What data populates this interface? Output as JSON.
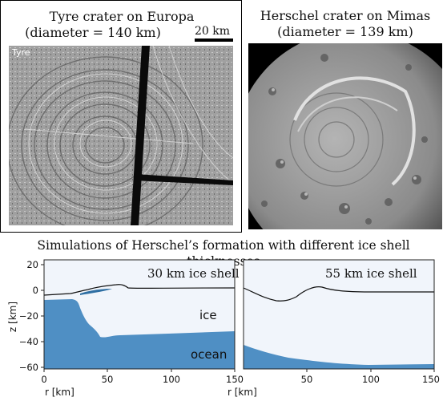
{
  "top_left": {
    "title_line1": "Tyre crater on Europa",
    "title_line2": "(diameter = 140 km)",
    "scale_label": "20 km",
    "image_label": "Tyre"
  },
  "top_right": {
    "title_line1": "Herschel crater on Mimas",
    "title_line2": "(diameter = 139 km)"
  },
  "bottom": {
    "heading": "Simulations of Herschel’s formation with different ice shell thicknesses",
    "left_panel": {
      "label": "30 km ice shell",
      "ice_label": "ice",
      "ocean_label": "ocean"
    },
    "right_panel": {
      "label": "55 km ice shell"
    },
    "ylabel": "z [km]",
    "xlabel": "r [km]",
    "y_ticks": [
      "20",
      "0",
      "−20",
      "−40",
      "−60"
    ],
    "x_ticks_left": [
      "0",
      "50",
      "100",
      "150"
    ],
    "x_ticks_right": [
      "50",
      "100",
      "150"
    ]
  },
  "colors": {
    "ocean": "#4f8fc4",
    "ice": "#f1f5fb",
    "ocean_edge": "#2f6fa3"
  },
  "chart_data": {
    "type": "area",
    "xlim": [
      0,
      150
    ],
    "ylim": [
      -60,
      20
    ],
    "panels": [
      {
        "name": "30 km ice shell",
        "ice_top": [
          [
            0,
            -5
          ],
          [
            20,
            -4
          ],
          [
            35,
            -2
          ],
          [
            50,
            -1
          ],
          [
            60,
            1
          ],
          [
            65,
            2
          ],
          [
            70,
            0
          ],
          [
            100,
            0
          ],
          [
            150,
            0
          ]
        ],
        "ocean_top": [
          [
            0,
            -7
          ],
          [
            25,
            -6
          ],
          [
            30,
            -10
          ],
          [
            35,
            -22
          ],
          [
            45,
            -28
          ],
          [
            55,
            -34
          ],
          [
            100,
            -33
          ],
          [
            150,
            -32
          ]
        ]
      },
      {
        "name": "55 km ice shell",
        "ice_top": [
          [
            0,
            0
          ],
          [
            20,
            -5
          ],
          [
            35,
            -9
          ],
          [
            50,
            -6
          ],
          [
            65,
            1
          ],
          [
            80,
            -2
          ],
          [
            150,
            -1
          ]
        ],
        "ocean_top": [
          [
            0,
            -44
          ],
          [
            30,
            -50
          ],
          [
            60,
            -54
          ],
          [
            100,
            -56
          ],
          [
            150,
            -55
          ]
        ]
      }
    ]
  }
}
